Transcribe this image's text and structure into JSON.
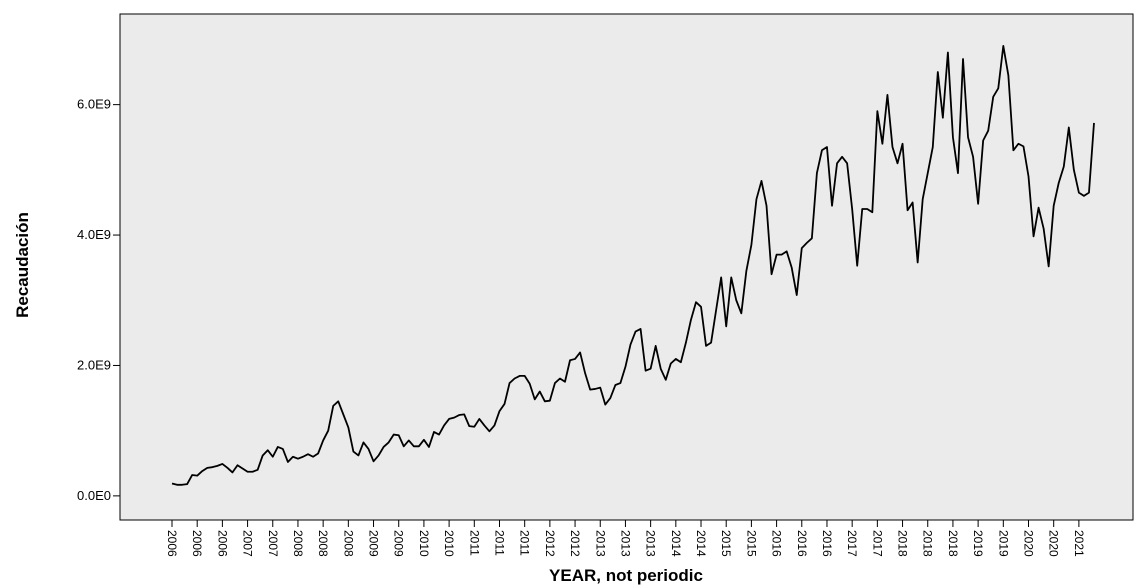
{
  "chart_data": {
    "type": "line",
    "x_label": "YEAR, not periodic",
    "y_label": "Recaudación",
    "color": "#000000",
    "background": "#ebebeb",
    "categories": [
      "2006",
      null,
      null,
      null,
      null,
      "2006",
      null,
      null,
      null,
      null,
      "2006",
      null,
      null,
      null,
      null,
      "2007",
      null,
      null,
      null,
      null,
      "2007",
      null,
      null,
      null,
      null,
      "2008",
      null,
      null,
      null,
      null,
      "2008",
      null,
      null,
      null,
      null,
      "2008",
      null,
      null,
      null,
      null,
      "2009",
      null,
      null,
      null,
      null,
      "2009",
      null,
      null,
      null,
      null,
      "2010",
      null,
      null,
      null,
      null,
      "2010",
      null,
      null,
      null,
      null,
      "2011",
      null,
      null,
      null,
      null,
      "2011",
      null,
      null,
      null,
      null,
      "2011",
      null,
      null,
      null,
      null,
      "2012",
      null,
      null,
      null,
      null,
      "2012",
      null,
      null,
      null,
      null,
      "2013",
      null,
      null,
      null,
      null,
      "2013",
      null,
      null,
      null,
      null,
      "2013",
      null,
      null,
      null,
      null,
      "2014",
      null,
      null,
      null,
      null,
      "2014",
      null,
      null,
      null,
      null,
      "2015",
      null,
      null,
      null,
      null,
      "2015",
      null,
      null,
      null,
      null,
      "2016",
      null,
      null,
      null,
      null,
      "2016",
      null,
      null,
      null,
      null,
      "2016",
      null,
      null,
      null,
      null,
      "2017",
      null,
      null,
      null,
      null,
      "2017",
      null,
      null,
      null,
      null,
      "2018",
      null,
      null,
      null,
      null,
      "2018",
      null,
      null,
      null,
      null,
      "2018",
      null,
      null,
      null,
      null,
      "2019",
      null,
      null,
      null,
      null,
      "2019",
      null,
      null,
      null,
      null,
      "2020",
      null,
      null,
      null,
      null,
      "2020",
      null,
      null,
      null,
      null,
      "2021",
      null,
      null,
      null
    ],
    "values": [
      190000000.0,
      170000000.0,
      170000000.0,
      180000000.0,
      320000000.0,
      310000000.0,
      380000000.0,
      430000000.0,
      440000000.0,
      460000000.0,
      490000000.0,
      430000000.0,
      360000000.0,
      470000000.0,
      420000000.0,
      370000000.0,
      370000000.0,
      400000000.0,
      620000000.0,
      700000000.0,
      600000000.0,
      750000000.0,
      720000000.0,
      520000000.0,
      600000000.0,
      570000000.0,
      600000000.0,
      640000000.0,
      600000000.0,
      650000000.0,
      850000000.0,
      1000000000.0,
      1380000000.0,
      1450000000.0,
      1250000000.0,
      1050000000.0,
      680000000.0,
      620000000.0,
      820000000.0,
      720000000.0,
      530000000.0,
      620000000.0,
      750000000.0,
      820000000.0,
      940000000.0,
      930000000.0,
      760000000.0,
      850000000.0,
      760000000.0,
      760000000.0,
      860000000.0,
      750000000.0,
      980000000.0,
      940000000.0,
      1080000000.0,
      1180000000.0,
      1200000000.0,
      1240000000.0,
      1250000000.0,
      1070000000.0,
      1060000000.0,
      1180000000.0,
      1080000000.0,
      990000000.0,
      1080000000.0,
      1300000000.0,
      1410000000.0,
      1730000000.0,
      1800000000.0,
      1840000000.0,
      1840000000.0,
      1720000000.0,
      1480000000.0,
      1600000000.0,
      1450000000.0,
      1460000000.0,
      1730000000.0,
      1800000000.0,
      1750000000.0,
      2080000000.0,
      2100000000.0,
      2200000000.0,
      1880000000.0,
      1630000000.0,
      1640000000.0,
      1660000000.0,
      1400000000.0,
      1500000000.0,
      1700000000.0,
      1730000000.0,
      1980000000.0,
      2320000000.0,
      2520000000.0,
      2560000000.0,
      1920000000.0,
      1950000000.0,
      2300000000.0,
      1950000000.0,
      1780000000.0,
      2030000000.0,
      2100000000.0,
      2050000000.0,
      2350000000.0,
      2700000000.0,
      2970000000.0,
      2900000000.0,
      2300000000.0,
      2350000000.0,
      2850000000.0,
      3350000000.0,
      2600000000.0,
      3350000000.0,
      3000000000.0,
      2800000000.0,
      3450000000.0,
      3850000000.0,
      4550000000.0,
      4830000000.0,
      4450000000.0,
      3400000000.0,
      3700000000.0,
      3700000000.0,
      3750000000.0,
      3500000000.0,
      3080000000.0,
      3800000000.0,
      3880000000.0,
      3950000000.0,
      4950000000.0,
      5300000000.0,
      5350000000.0,
      4450000000.0,
      5100000000.0,
      5200000000.0,
      5100000000.0,
      4400000000.0,
      3530000000.0,
      4400000000.0,
      4400000000.0,
      4350000000.0,
      5900000000.0,
      5400000000.0,
      6150000000.0,
      5350000000.0,
      5100000000.0,
      5400000000.0,
      4380000000.0,
      4500000000.0,
      3580000000.0,
      4550000000.0,
      4950000000.0,
      5350000000.0,
      6500000000.0,
      5800000000.0,
      6800000000.0,
      5500000000.0,
      4950000000.0,
      6700000000.0,
      5500000000.0,
      5200000000.0,
      4480000000.0,
      5450000000.0,
      5600000000.0,
      6120000000.0,
      6250000000.0,
      6900000000.0,
      6450000000.0,
      5300000000.0,
      5400000000.0,
      5360000000.0,
      4900000000.0,
      3980000000.0,
      4420000000.0,
      4100000000.0,
      3520000000.0,
      4450000000.0,
      4800000000.0,
      5050000000.0,
      5650000000.0,
      5000000000.0,
      4650000000.0,
      4600000000.0,
      4650000000.0,
      5720000000.0
    ],
    "ylim": [
      -370000000.0,
      7390000000.0
    ],
    "yticks": [
      {
        "value": 0,
        "label": "0.0E0"
      },
      {
        "value": 2000000000.0,
        "label": "2.0E9"
      },
      {
        "value": 4000000000.0,
        "label": "4.0E9"
      },
      {
        "value": 6000000000.0,
        "label": "6.0E9"
      }
    ]
  }
}
